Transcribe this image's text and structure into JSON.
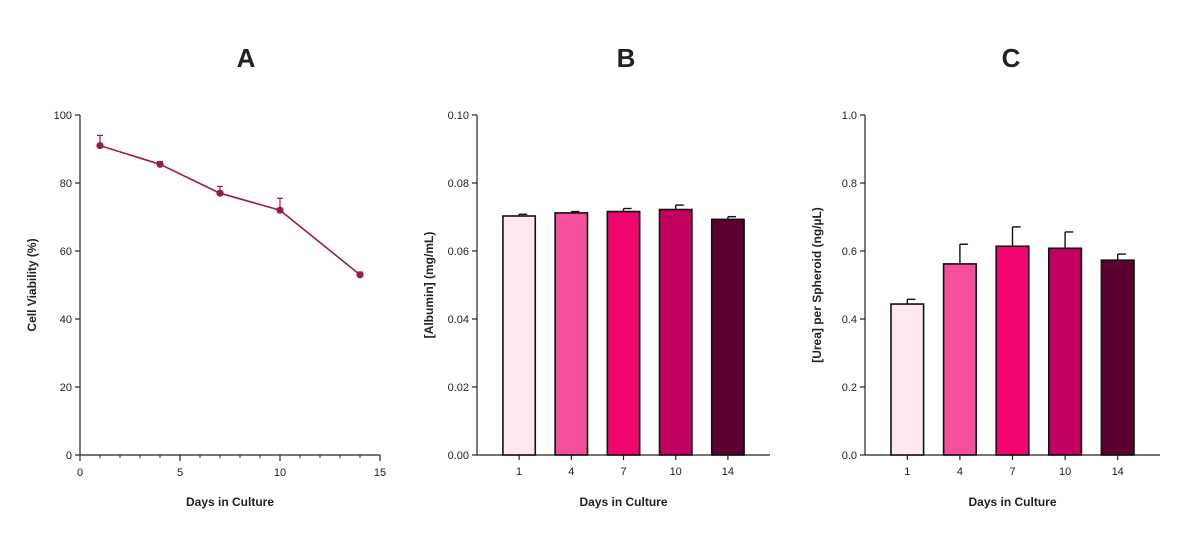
{
  "chart_data": [
    {
      "panel_label": "A",
      "type": "line",
      "title": "",
      "xlabel": "Days in Culture",
      "ylabel": "Cell Viability (%)",
      "xlim": [
        0,
        15
      ],
      "ylim": [
        0,
        100
      ],
      "x_ticks": [
        "0",
        "5",
        "10",
        "15"
      ],
      "y_ticks": [
        "0",
        "20",
        "40",
        "60",
        "80",
        "100"
      ],
      "color": "#9b1b4f",
      "series": [
        {
          "name": "Cell Viability",
          "x": [
            1,
            4,
            7,
            10,
            14
          ],
          "values": [
            91,
            85.5,
            77,
            72,
            53
          ],
          "error": [
            3,
            0.8,
            2,
            3.5,
            0.8
          ]
        }
      ]
    },
    {
      "panel_label": "B",
      "type": "bar",
      "title": "",
      "xlabel": "Days in Culture",
      "ylabel": "[Albumin] (mg/mL)",
      "categories": [
        "1",
        "4",
        "7",
        "10",
        "14"
      ],
      "values": [
        0.0703,
        0.0712,
        0.0716,
        0.0722,
        0.0693
      ],
      "error": [
        0.0005,
        0.0004,
        0.0009,
        0.0013,
        0.0008
      ],
      "colors": [
        "#fde7f1",
        "#f54e9a",
        "#f2056e",
        "#c2005e",
        "#5c0030"
      ],
      "ylim": [
        0,
        0.1
      ],
      "y_ticks": [
        "0.00",
        "0.02",
        "0.04",
        "0.06",
        "0.08",
        "0.10"
      ]
    },
    {
      "panel_label": "C",
      "type": "bar",
      "title": "",
      "xlabel": "Days in Culture",
      "ylabel": "[Urea] per Spheroid (ng/µL)",
      "categories": [
        "1",
        "4",
        "7",
        "10",
        "14"
      ],
      "values": [
        0.444,
        0.562,
        0.614,
        0.608,
        0.573
      ],
      "error": [
        0.014,
        0.058,
        0.057,
        0.048,
        0.018
      ],
      "colors": [
        "#fde7f1",
        "#f54e9a",
        "#f2056e",
        "#c2005e",
        "#5c0030"
      ],
      "ylim": [
        0,
        1.0
      ],
      "y_ticks": [
        "0.0",
        "0.2",
        "0.4",
        "0.6",
        "0.8",
        "1.0"
      ]
    }
  ]
}
